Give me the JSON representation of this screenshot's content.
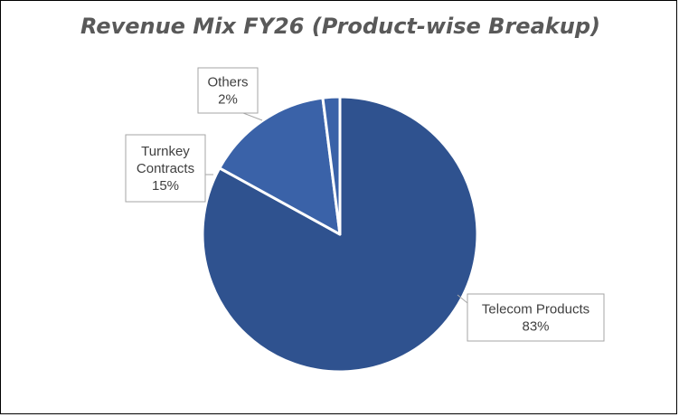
{
  "chart_data": {
    "type": "pie",
    "title": "Revenue Mix FY26 (Product-wise Breakup)",
    "slices": [
      {
        "name": "Telecom Products",
        "label_lines": [
          "Telecom Products"
        ],
        "value": 83,
        "percent_label": "83%",
        "color": "#2F528F"
      },
      {
        "name": "Turnkey Contracts",
        "label_lines": [
          "Turnkey",
          "Contracts"
        ],
        "value": 15,
        "percent_label": "15%",
        "color": "#3A62A8"
      },
      {
        "name": "Others",
        "label_lines": [
          "Others"
        ],
        "value": 2,
        "percent_label": "2%",
        "color": "#3A62A8"
      }
    ],
    "start_slice_clockwise_from_top": "Telecom Products",
    "legend": "none",
    "data_labels": "callouts"
  }
}
